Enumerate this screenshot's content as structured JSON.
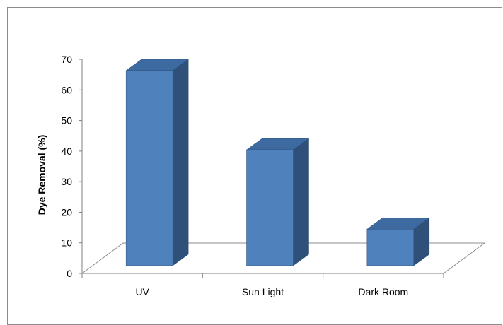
{
  "chart_data": {
    "type": "bar",
    "title": "",
    "xlabel": "",
    "ylabel": "Dye Removal (%)",
    "categories": [
      "UV",
      "Sun Light",
      "Dark Room"
    ],
    "values": [
      64,
      38,
      12
    ],
    "ylim": [
      0,
      70
    ],
    "yticks": [
      0,
      10,
      20,
      30,
      40,
      50,
      60,
      70
    ],
    "grid": false,
    "legend": "none",
    "style": "3d-column",
    "colors": {
      "bar_front": "#4f81bd",
      "bar_top": "#3d6aa0",
      "bar_side": "#2f5078",
      "bar_edge": "#2c4d75",
      "floor": "#8c8c8c",
      "axis": "#7f7f7f"
    }
  }
}
